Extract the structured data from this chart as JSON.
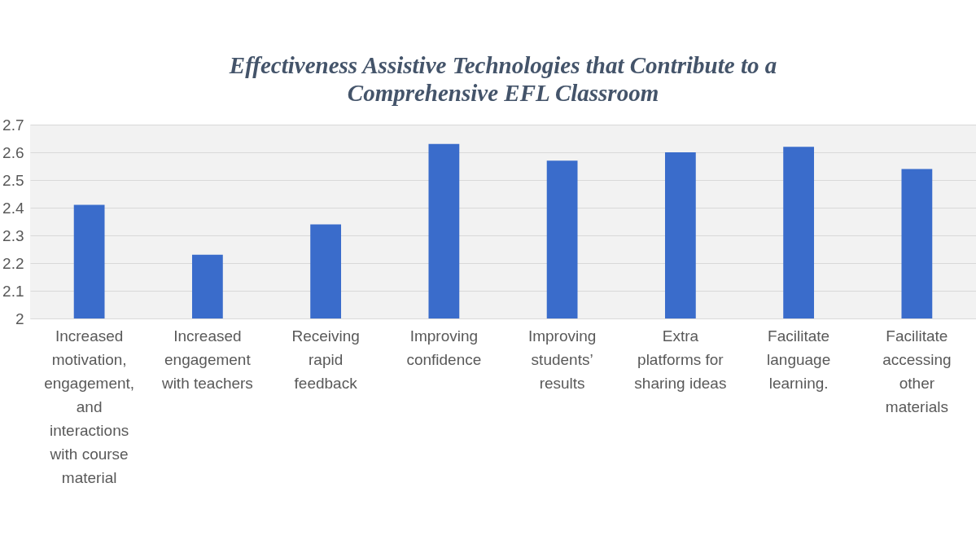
{
  "chart_data": {
    "type": "bar",
    "title": "Effectiveness Assistive Technologies that Contribute to a Comprehensive EFL Classroom",
    "categories": [
      "Increased motivation, engagement, and interactions with course material",
      "Increased engagement with teachers",
      "Receiving rapid feedback",
      "Improving confidence",
      "Improving students’ results",
      "Extra platforms for sharing ideas",
      "Facilitate language learning.",
      "Facilitate accessing other materials"
    ],
    "values": [
      2.41,
      2.23,
      2.34,
      2.63,
      2.57,
      2.6,
      2.62,
      2.54
    ],
    "color": "#3a6ccb",
    "ylim": [
      2,
      2.7
    ],
    "yticks": [
      2,
      2.1,
      2.2,
      2.3,
      2.4,
      2.5,
      2.6,
      2.7
    ],
    "grid": "y"
  }
}
